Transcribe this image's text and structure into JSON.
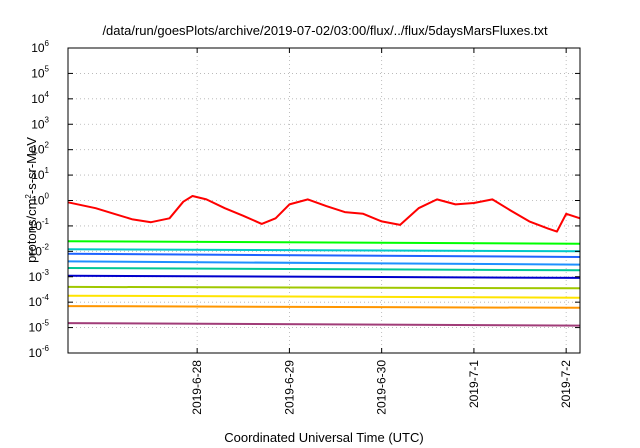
{
  "chart_data": {
    "type": "line",
    "title": "/data/run/goesPlots/archive/2019-07-02/03:00/flux/../flux/5daysMarsFluxes.txt",
    "xlabel": "Coordinated Universal Time (UTC)",
    "ylabel": "protons/cm²-s-sr-MeV",
    "ylabel_base": "protons/cm",
    "ylabel_sup": "2",
    "ylabel_tail": "-s-sr-MeV",
    "yscale": "log",
    "ylim_exp": [
      -6,
      6
    ],
    "xlim_days": [
      26.6,
      32.15
    ],
    "grid": true,
    "legend": "none",
    "x_ticks": [
      {
        "value": 28,
        "label": "2019-6-28"
      },
      {
        "value": 29,
        "label": "2019-6-29"
      },
      {
        "value": 30,
        "label": "2019-6-30"
      },
      {
        "value": 31,
        "label": "2019-7-1"
      },
      {
        "value": 32,
        "label": "2019-7-2"
      }
    ],
    "y_ticks": [
      {
        "exp": -6,
        "base": "10",
        "sup": "-6"
      },
      {
        "exp": -5,
        "base": "10",
        "sup": "-5"
      },
      {
        "exp": -4,
        "base": "10",
        "sup": "-4"
      },
      {
        "exp": -3,
        "base": "10",
        "sup": "-3"
      },
      {
        "exp": -2,
        "base": "10",
        "sup": "-2"
      },
      {
        "exp": -1,
        "base": "10",
        "sup": "-1"
      },
      {
        "exp": 0,
        "base": "10",
        "sup": "0"
      },
      {
        "exp": 1,
        "base": "10",
        "sup": "1"
      },
      {
        "exp": 2,
        "base": "10",
        "sup": "2"
      },
      {
        "exp": 3,
        "base": "10",
        "sup": "3"
      },
      {
        "exp": 4,
        "base": "10",
        "sup": "4"
      },
      {
        "exp": 5,
        "base": "10",
        "sup": "5"
      },
      {
        "exp": 6,
        "base": "10",
        "sup": "6"
      }
    ],
    "series": [
      {
        "color": "#ff0000",
        "x": [
          26.6,
          26.9,
          27.1,
          27.3,
          27.5,
          27.7,
          27.85,
          27.95,
          28.1,
          28.3,
          28.5,
          28.7,
          28.85,
          29.0,
          29.2,
          29.4,
          29.6,
          29.8,
          30.0,
          30.2,
          30.4,
          30.6,
          30.8,
          31.0,
          31.2,
          31.4,
          31.6,
          31.8,
          31.9,
          32.0,
          32.15
        ],
        "y": [
          0.85,
          0.5,
          0.3,
          0.18,
          0.14,
          0.2,
          0.9,
          1.5,
          1.1,
          0.5,
          0.25,
          0.12,
          0.2,
          0.7,
          1.1,
          0.6,
          0.35,
          0.3,
          0.15,
          0.11,
          0.5,
          1.1,
          0.7,
          0.8,
          1.1,
          0.4,
          0.15,
          0.08,
          0.06,
          0.3,
          0.2
        ]
      },
      {
        "color": "#00ff00",
        "x": [
          26.6,
          32.15
        ],
        "y": [
          0.025,
          0.02
        ]
      },
      {
        "color": "#00c8c8",
        "x": [
          26.6,
          32.15
        ],
        "y": [
          0.012,
          0.01
        ]
      },
      {
        "color": "#1e64ff",
        "x": [
          26.6,
          32.15
        ],
        "y": [
          0.008,
          0.006
        ]
      },
      {
        "color": "#1e90ff",
        "x": [
          26.6,
          32.15
        ],
        "y": [
          0.004,
          0.003
        ]
      },
      {
        "color": "#00c896",
        "x": [
          26.6,
          32.15
        ],
        "y": [
          0.0022,
          0.0018
        ]
      },
      {
        "color": "#0000cc",
        "x": [
          26.6,
          32.15
        ],
        "y": [
          0.0011,
          0.0009
        ]
      },
      {
        "color": "#a0c800",
        "x": [
          26.6,
          32.15
        ],
        "y": [
          0.0004,
          0.00035
        ]
      },
      {
        "color": "#ffe400",
        "x": [
          26.6,
          32.15
        ],
        "y": [
          0.00018,
          0.00015
        ]
      },
      {
        "color": "#ff9600",
        "x": [
          26.6,
          32.15
        ],
        "y": [
          7e-05,
          6e-05
        ]
      },
      {
        "color": "#a03c78",
        "x": [
          26.6,
          32.15
        ],
        "y": [
          1.5e-05,
          1.2e-05
        ]
      }
    ]
  }
}
